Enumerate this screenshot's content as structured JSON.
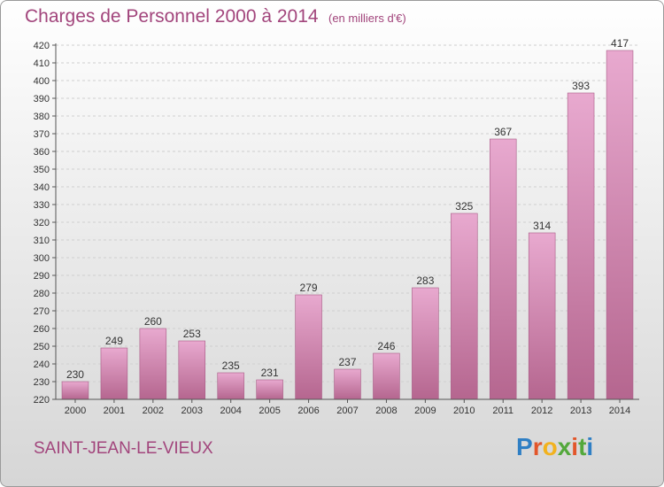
{
  "header": {
    "title": "Charges de Personnel 2000 à 2014",
    "subtitle": "(en milliers d'€)"
  },
  "footer": {
    "commune": "SAINT-JEAN-LE-VIEUX",
    "logo": "Proxiti"
  },
  "colors": {
    "accent": "#a2457c",
    "bar_light": "#e8a9cf",
    "bar_dark": "#b5668f",
    "logo_letters": [
      "#2f7fc4",
      "#e2562b",
      "#f2b21e",
      "#53a83b",
      "#e2562b",
      "#53a83b",
      "#2f7fc4"
    ]
  },
  "chart_data": {
    "type": "bar",
    "categories": [
      "2000",
      "2001",
      "2002",
      "2003",
      "2004",
      "2005",
      "2006",
      "2007",
      "2008",
      "2009",
      "2010",
      "2011",
      "2012",
      "2013",
      "2014"
    ],
    "values": [
      230,
      249,
      260,
      253,
      235,
      231,
      279,
      237,
      246,
      283,
      325,
      367,
      314,
      393,
      417
    ],
    "ylim": [
      220,
      420
    ],
    "yticks": [
      220,
      230,
      240,
      250,
      260,
      270,
      280,
      290,
      300,
      310,
      320,
      330,
      340,
      350,
      360,
      370,
      380,
      390,
      400,
      410,
      420
    ],
    "grid": true
  }
}
